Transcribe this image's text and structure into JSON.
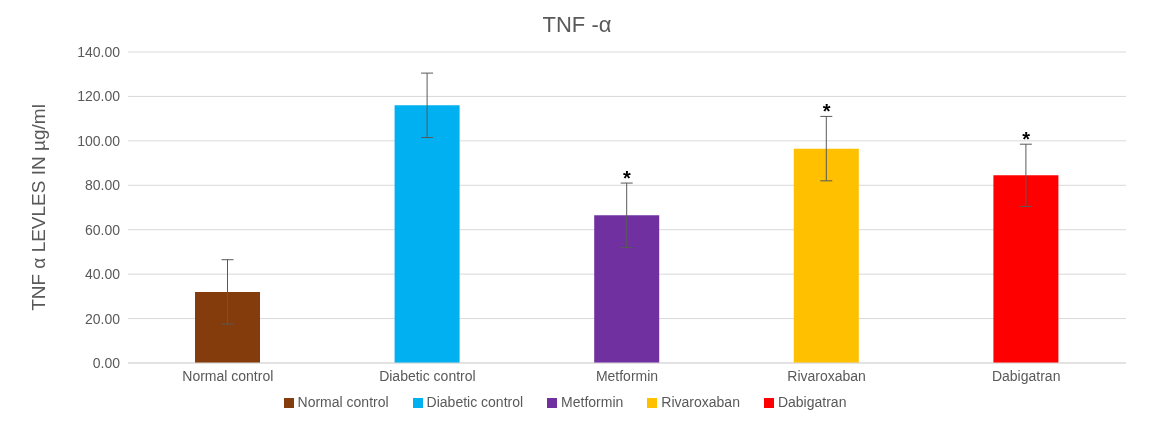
{
  "chart_data": {
    "type": "bar",
    "title": "TNF -α",
    "ylabel": "TNF α LEVLES IN µg/ml",
    "categories": [
      "Normal control",
      "Diabetic control",
      "Metformin",
      "Rivaroxaban",
      "Dabigatran"
    ],
    "stacked": true,
    "series": [
      {
        "name": "Normal control",
        "color": "#843c0c",
        "values": [
          32,
          null,
          null,
          null,
          null
        ],
        "errors": [
          14.5,
          null,
          null,
          null,
          null
        ]
      },
      {
        "name": "Diabetic control",
        "color": "#00b0f0",
        "values": [
          null,
          116,
          null,
          null,
          null
        ],
        "errors": [
          null,
          14.5,
          null,
          null,
          null
        ]
      },
      {
        "name": "Metformin",
        "color": "#7030a0",
        "values": [
          null,
          null,
          66.5,
          null,
          null
        ],
        "errors": [
          null,
          null,
          14.5,
          null,
          null
        ]
      },
      {
        "name": "Rivaroxaban",
        "color": "#ffc000",
        "values": [
          null,
          null,
          null,
          96.5,
          null
        ],
        "errors": [
          null,
          null,
          null,
          14.5,
          null
        ]
      },
      {
        "name": "Dabigatran",
        "color": "#ff0000",
        "values": [
          null,
          null,
          null,
          null,
          84.5
        ],
        "errors": [
          null,
          null,
          null,
          null,
          14
        ]
      }
    ],
    "ylim": [
      0,
      140
    ],
    "yticks": [
      {
        "value": 0,
        "label": "0.00"
      },
      {
        "value": 20,
        "label": "20.00"
      },
      {
        "value": 40,
        "label": "40.00"
      },
      {
        "value": 60,
        "label": "60.00"
      },
      {
        "value": 80,
        "label": "80.00"
      },
      {
        "value": 100,
        "label": "100.00"
      },
      {
        "value": 120,
        "label": "120.00"
      },
      {
        "value": 140,
        "label": "140.00"
      }
    ],
    "annotations": [
      {
        "text": "*",
        "x": "Metformin",
        "y": 81
      },
      {
        "text": "*",
        "x": "Rivaroxaban",
        "y": 111
      },
      {
        "text": "*",
        "x": "Dabigatran",
        "y": 98.5
      }
    ],
    "grid": "y",
    "legend": "bottom"
  }
}
